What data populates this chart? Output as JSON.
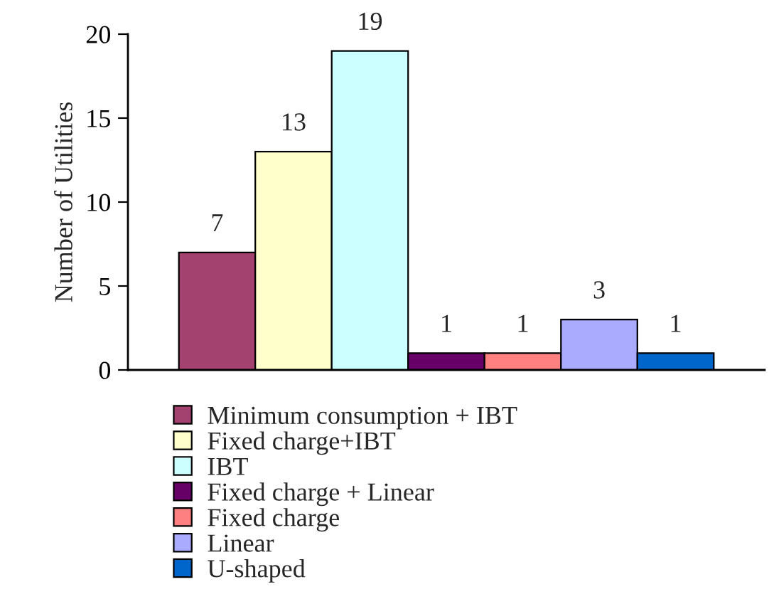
{
  "chart_data": {
    "type": "bar",
    "ylabel": "Number of Utilities",
    "categories": [
      null
    ],
    "series": [
      {
        "name": "Minimum consumption + IBT",
        "color": "#a3426e",
        "values": [
          7
        ]
      },
      {
        "name": "Fixed charge+IBT",
        "color": "#ffffcc",
        "values": [
          13
        ]
      },
      {
        "name": "IBT",
        "color": "#ccffff",
        "values": [
          19
        ]
      },
      {
        "name": "Fixed charge + Linear",
        "color": "#660066",
        "values": [
          1
        ]
      },
      {
        "name": "Fixed charge",
        "color": "#ff8080",
        "values": [
          1
        ]
      },
      {
        "name": "Linear",
        "color": "#aaaaff",
        "values": [
          3
        ]
      },
      {
        "name": "U-shaped",
        "color": "#0066cc",
        "values": [
          1
        ]
      }
    ],
    "ylim": [
      0,
      20
    ],
    "yticks": [
      0,
      5,
      10,
      15,
      20
    ],
    "data_labels": true,
    "grid": false,
    "legend": "bottom"
  }
}
